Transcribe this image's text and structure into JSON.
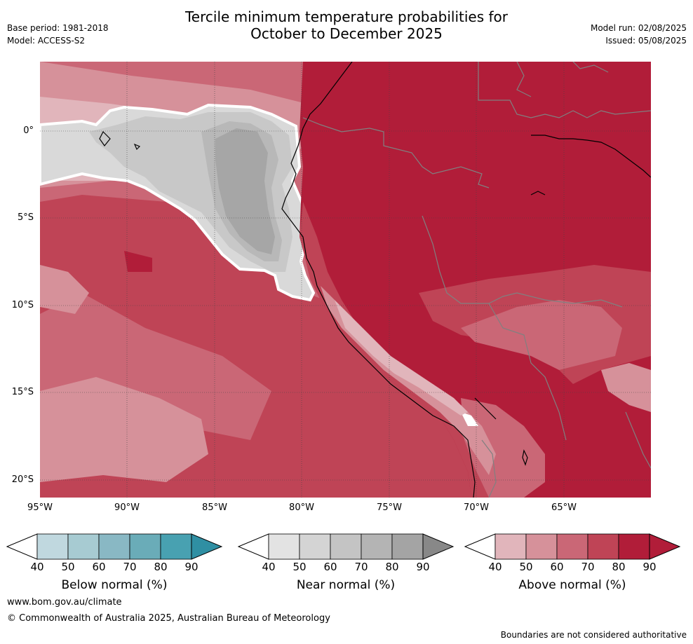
{
  "header": {
    "title_line1": "Tercile minimum temperature probabilities for",
    "title_line2": "October to December 2025",
    "base_period": "Base period: 1981-2018",
    "model": "Model: ACCESS-S2",
    "model_run": "Model run: 02/08/2025",
    "issued": "Issued: 05/08/2025"
  },
  "map": {
    "lat_labels": [
      "0°",
      "5°S",
      "10°S",
      "15°S",
      "20°S"
    ],
    "lon_labels": [
      "95°W",
      "90°W",
      "85°W",
      "80°W",
      "75°W",
      "70°W",
      "65°W"
    ],
    "colors": {
      "above_90": "#b11d39",
      "above_80": "#bf4456",
      "above_70": "#ca6776",
      "above_60": "#d6919a",
      "above_50": "#e1b5bb",
      "near_90": "#888888",
      "near_80": "#a6a6a6",
      "near_70": "#b8b8b8",
      "near_60": "#c8c8c8",
      "near_50": "#d9d9d9",
      "coast": "#000000",
      "borders": "#808080"
    }
  },
  "colorbars": [
    {
      "name": "Below normal (%)",
      "ticks": [
        "40",
        "50",
        "60",
        "70",
        "80",
        "90"
      ],
      "colors": [
        "#c0d8df",
        "#a7cbd2",
        "#89b8c4",
        "#6aacb8",
        "#48a1b1",
        "#2f8fa3"
      ]
    },
    {
      "name": "Near normal (%)",
      "ticks": [
        "40",
        "50",
        "60",
        "70",
        "80",
        "90"
      ],
      "colors": [
        "#e3e3e3",
        "#d4d4d4",
        "#c4c4c4",
        "#b4b4b4",
        "#a4a4a4",
        "#888888"
      ]
    },
    {
      "name": "Above normal (%)",
      "ticks": [
        "40",
        "50",
        "60",
        "70",
        "80",
        "90"
      ],
      "colors": [
        "#e1b5bb",
        "#d6919a",
        "#ca6776",
        "#bf4456",
        "#b11d39",
        "#b11d39"
      ]
    }
  ],
  "footer": {
    "website": "www.bom.gov.au/climate",
    "copyright": "© Commonwealth of Australia 2025, Australian Bureau of Meteorology",
    "disclaimer": "Boundaries are not considered authoritative"
  }
}
